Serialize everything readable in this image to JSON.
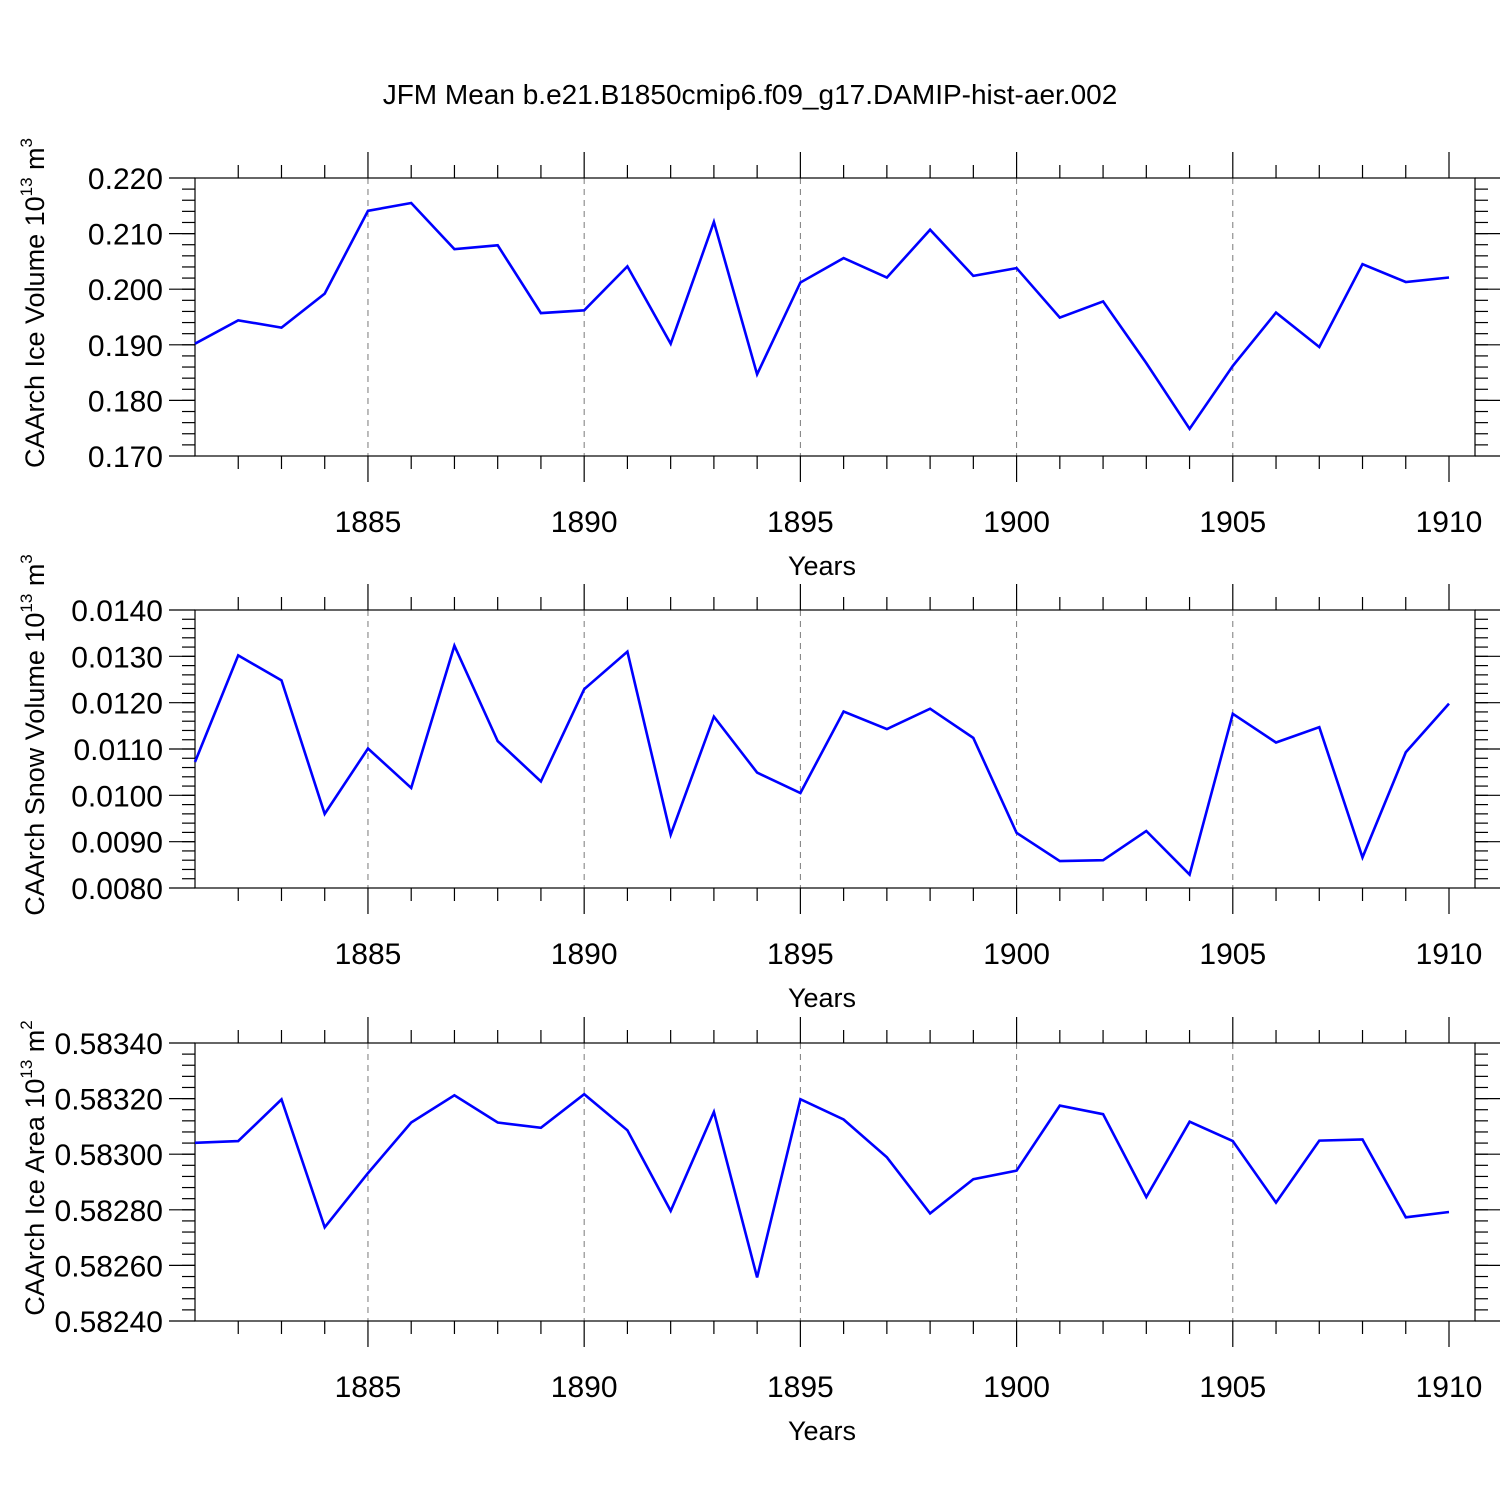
{
  "figure_title": "JFM Mean b.e21.B1850cmip6.f09_g17.DAMIP-hist-aer.002",
  "colors": {
    "line": "#0000ff",
    "axis": "#000000",
    "grid": "#7a7a7a"
  },
  "chart_data": [
    {
      "type": "line",
      "title": "JFM Mean b.e21.B1850cmip6.f09_g17.DAMIP-hist-aer.002",
      "ylabel": "CAArch Ice Volume 10",
      "ylabel_sup": "13",
      "ylabel_unit": " m",
      "ylabel_unit_sup": "3",
      "xlabel": "Years",
      "xlim": [
        1881,
        1910
      ],
      "ylim": [
        0.17,
        0.22
      ],
      "x_ticks": [
        1885,
        1890,
        1895,
        1900,
        1905,
        1910
      ],
      "x_tick_labels": [
        "1885",
        "1890",
        "1895",
        "1900",
        "1905",
        "1910"
      ],
      "y_ticks": [
        0.17,
        0.18,
        0.19,
        0.2,
        0.21,
        0.22
      ],
      "y_tick_labels": [
        "0.170",
        "0.180",
        "0.190",
        "0.200",
        "0.210",
        "0.220"
      ],
      "y_minor_step": 0.002,
      "grid": "x-dashed",
      "x": [
        1881,
        1882,
        1883,
        1884,
        1885,
        1886,
        1887,
        1888,
        1889,
        1890,
        1891,
        1892,
        1893,
        1894,
        1895,
        1896,
        1897,
        1898,
        1899,
        1900,
        1901,
        1902,
        1903,
        1904,
        1905,
        1906,
        1907,
        1908,
        1909,
        1910
      ],
      "series": [
        {
          "name": "CAArch Ice Volume",
          "values": [
            0.1902,
            0.1944,
            0.1931,
            0.1992,
            0.2141,
            0.2155,
            0.2072,
            0.2079,
            0.1957,
            0.1962,
            0.2041,
            0.1902,
            0.2121,
            0.1847,
            0.2012,
            0.2056,
            0.2021,
            0.2107,
            0.2024,
            0.2038,
            0.1949,
            0.1978,
            0.1867,
            0.1749,
            0.1862,
            0.1958,
            0.1896,
            0.2045,
            0.2013,
            0.2021
          ]
        }
      ]
    },
    {
      "type": "line",
      "ylabel": "CAArch Snow Volume 10",
      "ylabel_sup": "13",
      "ylabel_unit": " m",
      "ylabel_unit_sup": "3",
      "xlabel": "Years",
      "xlim": [
        1881,
        1910
      ],
      "ylim": [
        0.008,
        0.014
      ],
      "x_ticks": [
        1885,
        1890,
        1895,
        1900,
        1905,
        1910
      ],
      "x_tick_labels": [
        "1885",
        "1890",
        "1895",
        "1900",
        "1905",
        "1910"
      ],
      "y_ticks": [
        0.008,
        0.009,
        0.01,
        0.011,
        0.012,
        0.013,
        0.014
      ],
      "y_tick_labels": [
        "0.0080",
        "0.0090",
        "0.0100",
        "0.0110",
        "0.0120",
        "0.0130",
        "0.0140"
      ],
      "y_minor_step": 0.0002,
      "grid": "x-dashed",
      "x": [
        1881,
        1882,
        1883,
        1884,
        1885,
        1886,
        1887,
        1888,
        1889,
        1890,
        1891,
        1892,
        1893,
        1894,
        1895,
        1896,
        1897,
        1898,
        1899,
        1900,
        1901,
        1902,
        1903,
        1904,
        1905,
        1906,
        1907,
        1908,
        1909,
        1910
      ],
      "series": [
        {
          "name": "CAArch Snow Volume",
          "values": [
            0.01072,
            0.01302,
            0.01248,
            0.0096,
            0.01101,
            0.01016,
            0.01323,
            0.01117,
            0.0103,
            0.01229,
            0.0131,
            0.00915,
            0.0117,
            0.01049,
            0.01005,
            0.01181,
            0.01143,
            0.01187,
            0.01124,
            0.00919,
            0.00858,
            0.0086,
            0.00923,
            0.00829,
            0.01176,
            0.01114,
            0.01147,
            0.00866,
            0.01093,
            0.01198
          ]
        }
      ]
    },
    {
      "type": "line",
      "ylabel": "CAArch Ice Area 10",
      "ylabel_sup": "13",
      "ylabel_unit": " m",
      "ylabel_unit_sup": "2",
      "xlabel": "Years",
      "xlim": [
        1881,
        1910
      ],
      "ylim": [
        0.5824,
        0.5834
      ],
      "x_ticks": [
        1885,
        1890,
        1895,
        1900,
        1905,
        1910
      ],
      "x_tick_labels": [
        "1885",
        "1890",
        "1895",
        "1900",
        "1905",
        "1910"
      ],
      "y_ticks": [
        0.5824,
        0.5826,
        0.5828,
        0.583,
        0.5832,
        0.5834
      ],
      "y_tick_labels": [
        "0.58240",
        "0.58260",
        "0.58280",
        "0.58300",
        "0.58320",
        "0.58340"
      ],
      "y_minor_step": 4e-05,
      "grid": "x-dashed",
      "x": [
        1881,
        1882,
        1883,
        1884,
        1885,
        1886,
        1887,
        1888,
        1889,
        1890,
        1891,
        1892,
        1893,
        1894,
        1895,
        1896,
        1897,
        1898,
        1899,
        1900,
        1901,
        1902,
        1903,
        1904,
        1905,
        1906,
        1907,
        1908,
        1909,
        1910
      ],
      "series": [
        {
          "name": "CAArch Ice Area",
          "values": [
            0.583041,
            0.583047,
            0.583197,
            0.582737,
            0.582932,
            0.583114,
            0.583212,
            0.583114,
            0.583095,
            0.583216,
            0.583086,
            0.582796,
            0.583152,
            0.582557,
            0.583198,
            0.583125,
            0.582989,
            0.582787,
            0.58291,
            0.582941,
            0.583175,
            0.583144,
            0.582846,
            0.583117,
            0.583047,
            0.582826,
            0.583049,
            0.583053,
            0.582773,
            0.582792
          ]
        }
      ]
    }
  ]
}
